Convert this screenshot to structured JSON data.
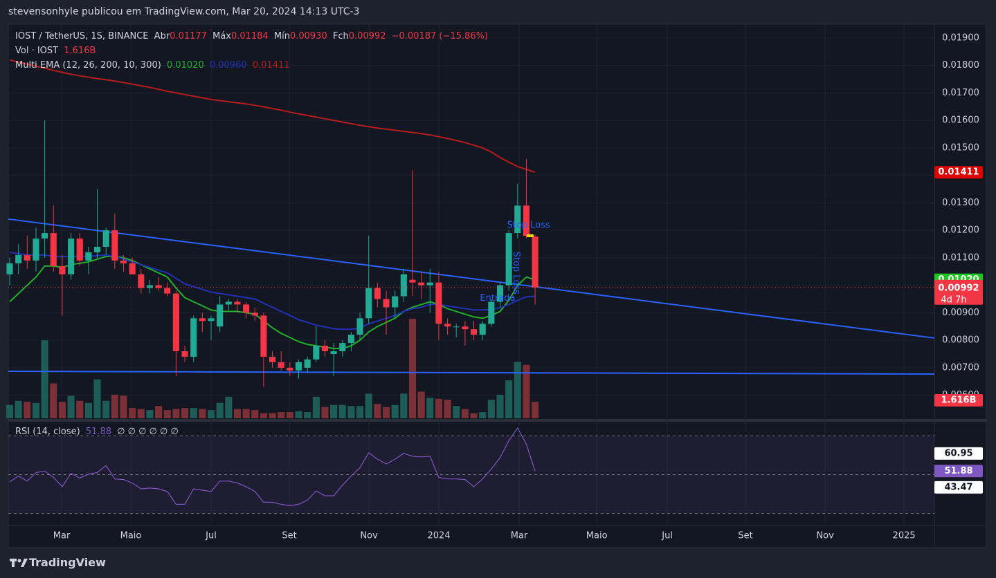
{
  "header": {
    "publisher": "stevensonhyle publicou em TradingView.com, Mar 20, 2024 14:13 UTC-3",
    "symbol": "IOST / TetherUS, 1S, BINANCE",
    "ohlc": [
      {
        "label": "Abr",
        "value": "0.01177"
      },
      {
        "label": "Máx",
        "value": "0.01184"
      },
      {
        "label": "Mín",
        "value": "0.00930"
      },
      {
        "label": "Fch",
        "value": "0.00992"
      }
    ],
    "change": "−0.00187 (−15.86%)",
    "volume_label": "Vol · IOST",
    "volume_value": "1.616B",
    "ema_label": "Multi EMA (12, 26, 200, 10, 300)",
    "countdown": "4d 7h",
    "rsi_label": "RSI (14, close)",
    "rsi_extra": "∅ ∅ ∅ ∅ ∅ ∅",
    "brand": "TradingView"
  },
  "chart_data": {
    "type": "candlestick",
    "up_color": "#22ab94",
    "down_color": "#f23645",
    "grid": true,
    "open": [
      0.0104,
      0.0108,
      0.0111,
      0.0109,
      0.0117,
      0.0119,
      0.0107,
      0.0104,
      0.0117,
      0.0109,
      0.0112,
      0.0114,
      0.012,
      0.0109,
      0.0108,
      0.0104,
      0.0099,
      0.01,
      0.0099,
      0.0097,
      0.0076,
      0.0074,
      0.0088,
      0.0087,
      0.0085,
      0.0093,
      0.0094,
      0.0093,
      0.009,
      0.0089,
      0.0074,
      0.0072,
      0.007,
      0.0069,
      0.007,
      0.0073,
      0.0078,
      0.0075,
      0.0076,
      0.0079,
      0.0082,
      0.0088,
      0.0099,
      0.0095,
      0.0092,
      0.0096,
      0.0102,
      0.0101,
      0.01,
      0.0101,
      0.0086,
      0.0085,
      0.0085,
      0.0084,
      0.0082,
      0.0086,
      0.0094,
      0.01,
      0.0119,
      0.0129,
      0.01177
    ],
    "high": [
      0.011,
      0.0115,
      0.0118,
      0.0121,
      0.016,
      0.0129,
      0.0111,
      0.0119,
      0.0119,
      0.0114,
      0.0135,
      0.0121,
      0.0126,
      0.0111,
      0.011,
      0.0106,
      0.0102,
      0.0103,
      0.0101,
      0.0098,
      0.0078,
      0.0089,
      0.009,
      0.0089,
      0.0096,
      0.0095,
      0.0095,
      0.0094,
      0.0092,
      0.009,
      0.0076,
      0.0076,
      0.0072,
      0.0073,
      0.0074,
      0.0085,
      0.008,
      0.0079,
      0.008,
      0.0083,
      0.009,
      0.0118,
      0.0101,
      0.0098,
      0.0098,
      0.0106,
      0.0142,
      0.0105,
      0.0106,
      0.0105,
      0.0088,
      0.0086,
      0.0087,
      0.0087,
      0.0087,
      0.0095,
      0.0101,
      0.012,
      0.0137,
      0.0146,
      0.01184
    ],
    "low": [
      0.01,
      0.0104,
      0.0106,
      0.0105,
      0.011,
      0.0105,
      0.0089,
      0.0102,
      0.0107,
      0.0104,
      0.011,
      0.0111,
      0.0106,
      0.0105,
      0.0104,
      0.0097,
      0.0097,
      0.0098,
      0.0096,
      0.0067,
      0.0072,
      0.0072,
      0.0083,
      0.008,
      0.0083,
      0.0091,
      0.009,
      0.0088,
      0.0087,
      0.0063,
      0.007,
      0.0069,
      0.0067,
      0.0066,
      0.0068,
      0.0072,
      0.0074,
      0.0067,
      0.0074,
      0.0076,
      0.008,
      0.0086,
      0.0092,
      0.0082,
      0.0088,
      0.0094,
      0.0096,
      0.0095,
      0.009,
      0.008,
      0.0082,
      0.0081,
      0.0078,
      0.008,
      0.008,
      0.0085,
      0.0092,
      0.0098,
      0.0117,
      0.0117,
      0.0093
    ],
    "close": [
      0.0108,
      0.0111,
      0.0109,
      0.0117,
      0.0119,
      0.0107,
      0.0104,
      0.0117,
      0.0109,
      0.0112,
      0.0114,
      0.012,
      0.0109,
      0.0108,
      0.0104,
      0.0099,
      0.01,
      0.0099,
      0.0097,
      0.0076,
      0.0074,
      0.0088,
      0.0087,
      0.0088,
      0.0093,
      0.0094,
      0.0093,
      0.009,
      0.0089,
      0.0074,
      0.0072,
      0.007,
      0.0069,
      0.0072,
      0.0073,
      0.0078,
      0.0076,
      0.0076,
      0.0079,
      0.0082,
      0.0088,
      0.0099,
      0.0095,
      0.0092,
      0.0096,
      0.0104,
      0.0101,
      0.01,
      0.0101,
      0.0086,
      0.0085,
      0.0085,
      0.0084,
      0.0082,
      0.0086,
      0.0094,
      0.01,
      0.0119,
      0.0129,
      0.0118,
      0.00992
    ],
    "xlim": [
      -0.16,
      105.6
    ],
    "xticks": [
      {
        "value": 5.93,
        "label": "Mar"
      },
      {
        "value": 13.83,
        "label": "Maio"
      },
      {
        "value": 23.0,
        "label": "Jul"
      },
      {
        "value": 31.94,
        "label": "Set"
      },
      {
        "value": 41.03,
        "label": "Nov"
      },
      {
        "value": 49.01,
        "label": "2024"
      },
      {
        "value": 58.18,
        "label": "Mar"
      },
      {
        "value": 67.04,
        "label": "Maio"
      },
      {
        "value": 75.1,
        "label": "Jul"
      },
      {
        "value": 84.03,
        "label": "Set"
      },
      {
        "value": 93.12,
        "label": "Nov"
      },
      {
        "value": 102.13,
        "label": "2025"
      }
    ],
    "ylim": [
      0.00516,
      0.0195
    ],
    "yticks": [
      {
        "value": 0.006,
        "label": "0.00600"
      },
      {
        "value": 0.007,
        "label": "0.00700"
      },
      {
        "value": 0.008,
        "label": "0.00800"
      },
      {
        "value": 0.009,
        "label": "0.00900"
      },
      {
        "value": 0.01,
        "label": "0.01000"
      },
      {
        "value": 0.011,
        "label": "0.01100"
      },
      {
        "value": 0.012,
        "label": "0.01200"
      },
      {
        "value": 0.013,
        "label": "0.01300"
      },
      {
        "value": 0.014,
        "label": "0.01400"
      },
      {
        "value": 0.015,
        "label": "0.01500"
      },
      {
        "value": 0.016,
        "label": "0.01600"
      },
      {
        "value": 0.017,
        "label": "0.01700"
      },
      {
        "value": 0.018,
        "label": "0.01800"
      },
      {
        "value": 0.019,
        "label": "0.01900"
      }
    ],
    "volume": {
      "ylim": [
        0,
        38.4
      ],
      "up_color": "#1e5d57",
      "down_color": "#7b2f37",
      "values": [
        1.3,
        1.7,
        1.6,
        1.5,
        7.6,
        3.4,
        1.6,
        2.2,
        1.7,
        1.5,
        3.8,
        1.7,
        2.3,
        2.2,
        1.0,
        0.9,
        0.8,
        1.2,
        0.8,
        0.9,
        1.0,
        1.0,
        0.9,
        0.8,
        1.5,
        2.1,
        0.9,
        0.9,
        0.8,
        0.5,
        0.5,
        0.6,
        0.6,
        0.7,
        0.6,
        2.1,
        1.1,
        1.3,
        1.3,
        1.2,
        1.2,
        2.4,
        1.4,
        1.1,
        1.3,
        2.4,
        9.7,
        2.6,
        2.0,
        1.9,
        1.8,
        1.2,
        0.9,
        0.5,
        0.6,
        1.8,
        2.3,
        3.7,
        5.5,
        5.2,
        1.616
      ]
    },
    "ema": [
      {
        "color": "#22b02a",
        "badge_color": "#1fc81f",
        "last_label": "0.01020",
        "values": [
          0.0094,
          0.0097,
          0.01,
          0.0103,
          0.0107,
          0.0107,
          0.01065,
          0.01075,
          0.0108,
          0.01085,
          0.01095,
          0.01105,
          0.01105,
          0.011,
          0.0109,
          0.01075,
          0.0106,
          0.01045,
          0.0103,
          0.0099,
          0.00955,
          0.0094,
          0.00925,
          0.0091,
          0.00905,
          0.00905,
          0.00905,
          0.009,
          0.00895,
          0.0087,
          0.00845,
          0.00825,
          0.0081,
          0.00795,
          0.00785,
          0.0078,
          0.00775,
          0.0077,
          0.0077,
          0.0078,
          0.008,
          0.0083,
          0.0085,
          0.00865,
          0.0088,
          0.00905,
          0.0092,
          0.0093,
          0.0094,
          0.0093,
          0.00915,
          0.00905,
          0.00895,
          0.00885,
          0.0088,
          0.0089,
          0.00905,
          0.00945,
          0.01,
          0.0103,
          0.0102
        ]
      },
      {
        "color": "#2132b8",
        "badge_color": "#1010e0",
        "last_label": "0.00960",
        "values": [
          0.0112,
          0.01115,
          0.0111,
          0.0111,
          0.0111,
          0.01105,
          0.01105,
          0.01105,
          0.01105,
          0.01105,
          0.01108,
          0.0111,
          0.01105,
          0.01095,
          0.01085,
          0.01075,
          0.01065,
          0.01055,
          0.01045,
          0.01025,
          0.01005,
          0.00995,
          0.00985,
          0.00975,
          0.0097,
          0.00965,
          0.0096,
          0.00955,
          0.0095,
          0.00935,
          0.0092,
          0.00905,
          0.0089,
          0.00875,
          0.00865,
          0.00855,
          0.00848,
          0.00842,
          0.0084,
          0.0084,
          0.00845,
          0.0086,
          0.0087,
          0.0088,
          0.0089,
          0.00905,
          0.00915,
          0.0092,
          0.0093,
          0.0093,
          0.00925,
          0.0092,
          0.00915,
          0.0091,
          0.0091,
          0.00912,
          0.00918,
          0.0093,
          0.00945,
          0.00958,
          0.0096
        ]
      },
      {
        "color": "#b71c1c",
        "badge_color": "#e00000",
        "last_label": "0.01411",
        "values": [
          0.0182,
          0.01812,
          0.01805,
          0.01797,
          0.0179,
          0.01782,
          0.01775,
          0.01768,
          0.01762,
          0.01757,
          0.01752,
          0.01748,
          0.01743,
          0.01738,
          0.01732,
          0.01726,
          0.0172,
          0.01713,
          0.01706,
          0.017,
          0.01694,
          0.01688,
          0.01682,
          0.01676,
          0.01672,
          0.01668,
          0.01664,
          0.0166,
          0.01655,
          0.01649,
          0.01643,
          0.01637,
          0.0163,
          0.01624,
          0.01618,
          0.01612,
          0.01606,
          0.016,
          0.01594,
          0.01588,
          0.01582,
          0.01577,
          0.01572,
          0.01568,
          0.01564,
          0.0156,
          0.01556,
          0.01552,
          0.01547,
          0.01541,
          0.01534,
          0.01527,
          0.01519,
          0.0151,
          0.015,
          0.01485,
          0.01465,
          0.01448,
          0.01432,
          0.01422,
          0.01411
        ]
      }
    ],
    "trendlines": [
      {
        "color": "#2962ff",
        "x": [
          -0.16,
          105.6
        ],
        "y": [
          0.01241,
          0.00808
        ]
      },
      {
        "color": "#2962ff",
        "x": [
          -0.16,
          105.6
        ],
        "y": [
          0.00687,
          0.00677
        ]
      }
    ],
    "annotations": [
      {
        "text": "Stop Loss",
        "x": 56.8,
        "y": 0.01218,
        "rotate": 0
      },
      {
        "text": "Stop Loss",
        "x": 57.8,
        "y": 0.01045,
        "rotate": 90
      },
      {
        "text": "Entrada",
        "x": 53.7,
        "y": 0.00952,
        "rotate": 0
      }
    ],
    "rsi": {
      "color": "#7e57c2",
      "ylim": [
        23.8,
        76.6
      ],
      "levels": [
        70,
        50,
        30
      ],
      "axis_labels": [
        60.95,
        43.47
      ],
      "values": [
        46.4,
        49.3,
        46.7,
        51.1,
        51.9,
        48.6,
        43.8,
        50.7,
        48.2,
        50.3,
        51.1,
        54.7,
        47.8,
        47.5,
        45.7,
        42.7,
        43.1,
        42.7,
        41.3,
        34.7,
        34.7,
        42.7,
        42.0,
        41.3,
        46.7,
        46.7,
        45.7,
        43.8,
        41.3,
        35.8,
        35.8,
        34.7,
        34.0,
        34.7,
        36.9,
        41.6,
        39.1,
        39.1,
        44.6,
        49.3,
        53.7,
        61.3,
        58.0,
        55.5,
        58.0,
        61.0,
        59.5,
        59.2,
        59.5,
        48.6,
        47.8,
        47.8,
        47.5,
        43.8,
        47.8,
        52.9,
        58.8,
        67.5,
        74.1,
        65.7,
        51.88
      ]
    }
  }
}
